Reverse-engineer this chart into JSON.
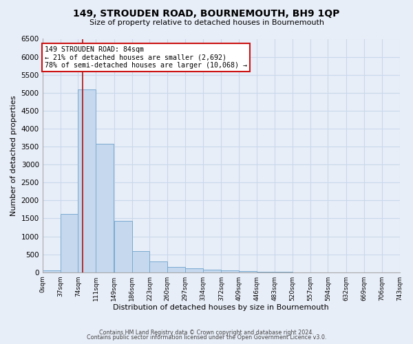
{
  "title": "149, STROUDEN ROAD, BOURNEMOUTH, BH9 1QP",
  "subtitle": "Size of property relative to detached houses in Bournemouth",
  "xlabel": "Distribution of detached houses by size in Bournemouth",
  "ylabel": "Number of detached properties",
  "bin_edges": [
    0,
    37,
    74,
    111,
    149,
    186,
    223,
    260,
    297,
    334,
    372,
    409,
    446,
    483,
    520,
    557,
    594,
    632,
    669,
    706,
    743
  ],
  "bin_counts": [
    50,
    1620,
    5090,
    3580,
    1430,
    590,
    300,
    150,
    110,
    75,
    50,
    30,
    10,
    5,
    3,
    2,
    1,
    1,
    1,
    1
  ],
  "bar_color": "#c5d8ee",
  "bar_edge_color": "#7aaad0",
  "grid_color": "#c8d8ea",
  "bg_color": "#e8eef8",
  "property_line_x": 84,
  "property_line_color": "#aa1111",
  "annotation_text": "149 STROUDEN ROAD: 84sqm\n← 21% of detached houses are smaller (2,692)\n78% of semi-detached houses are larger (10,068) →",
  "annotation_box_color": "white",
  "annotation_box_edge": "#cc1111",
  "ylim": [
    0,
    6500
  ],
  "yticks": [
    0,
    500,
    1000,
    1500,
    2000,
    2500,
    3000,
    3500,
    4000,
    4500,
    5000,
    5500,
    6000,
    6500
  ],
  "tick_labels": [
    "0sqm",
    "37sqm",
    "74sqm",
    "111sqm",
    "149sqm",
    "186sqm",
    "223sqm",
    "260sqm",
    "297sqm",
    "334sqm",
    "372sqm",
    "409sqm",
    "446sqm",
    "483sqm",
    "520sqm",
    "557sqm",
    "594sqm",
    "632sqm",
    "669sqm",
    "706sqm",
    "743sqm"
  ],
  "footer1": "Contains HM Land Registry data © Crown copyright and database right 2024.",
  "footer2": "Contains public sector information licensed under the Open Government Licence v3.0."
}
